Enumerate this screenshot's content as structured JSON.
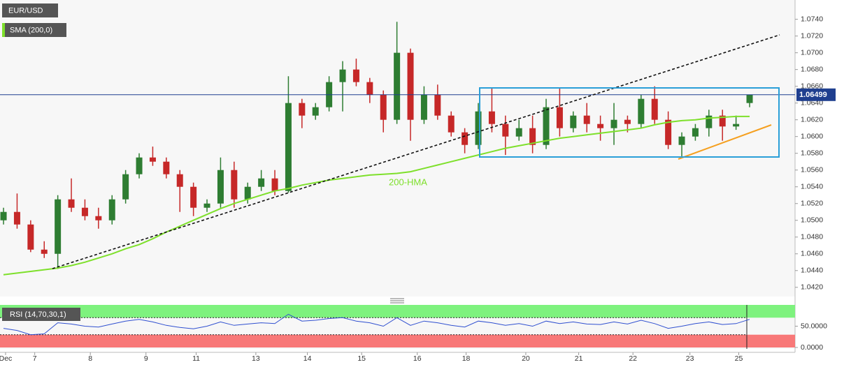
{
  "chart_data": [
    {
      "type": "candlestick",
      "title": "EUR/USD",
      "indicator": "SMA (200,0)",
      "line_label": "200-HMA",
      "xlim": [
        -0.26,
        58.35
      ],
      "ylim": [
        1.0409,
        1.0763
      ],
      "yticks": [
        {
          "value": 1.074,
          "label": "1.0740"
        },
        {
          "value": 1.072,
          "label": "1.0720"
        },
        {
          "value": 1.07,
          "label": "1.0700"
        },
        {
          "value": 1.068,
          "label": "1.0680"
        },
        {
          "value": 1.066,
          "label": "1.0660"
        },
        {
          "value": 1.064,
          "label": "1.0640"
        },
        {
          "value": 1.062,
          "label": "1.0620"
        },
        {
          "value": 1.06,
          "label": "1.0600"
        },
        {
          "value": 1.058,
          "label": "1.0580"
        },
        {
          "value": 1.056,
          "label": "1.0560"
        },
        {
          "value": 1.054,
          "label": "1.0540"
        },
        {
          "value": 1.052,
          "label": "1.0520"
        },
        {
          "value": 1.05,
          "label": "1.0500"
        },
        {
          "value": 1.048,
          "label": "1.0480"
        },
        {
          "value": 1.046,
          "label": "1.0460"
        },
        {
          "value": 1.044,
          "label": "1.0440"
        },
        {
          "value": 1.042,
          "label": "1.0420"
        }
      ],
      "last_price": 1.06499,
      "up_color": "#2e7d32",
      "down_color": "#c62828",
      "line_color": "#7ee02b",
      "price_line_color": "#1f3f8f",
      "open": [
        1.05,
        1.051,
        1.0495,
        1.0465,
        1.046,
        1.0525,
        1.0515,
        1.0505,
        1.05,
        1.0525,
        1.0555,
        1.0575,
        1.057,
        1.0555,
        1.054,
        1.0515,
        1.052,
        1.056,
        1.0525,
        1.054,
        1.055,
        1.0535,
        1.064,
        1.0625,
        1.0635,
        1.0665,
        1.068,
        1.0665,
        1.065,
        1.062,
        1.07,
        1.062,
        1.065,
        1.0625,
        1.0605,
        1.059,
        1.063,
        1.0615,
        1.06,
        1.061,
        1.059,
        1.0635,
        1.061,
        1.0625,
        1.0615,
        1.061,
        1.062,
        1.0615,
        1.0645,
        1.062,
        1.059,
        1.06,
        1.061,
        1.0625,
        1.0612,
        1.064
      ],
      "high": [
        1.0515,
        1.0532,
        1.05,
        1.0475,
        1.053,
        1.055,
        1.0525,
        1.0515,
        1.053,
        1.056,
        1.058,
        1.0588,
        1.0575,
        1.056,
        1.0545,
        1.0525,
        1.0575,
        1.057,
        1.0545,
        1.056,
        1.056,
        1.0672,
        1.0645,
        1.064,
        1.0672,
        1.069,
        1.0693,
        1.067,
        1.0655,
        1.0737,
        1.0705,
        1.066,
        1.0662,
        1.063,
        1.061,
        1.064,
        1.0658,
        1.0625,
        1.062,
        1.0625,
        1.0645,
        1.0658,
        1.063,
        1.064,
        1.0625,
        1.064,
        1.0625,
        1.065,
        1.066,
        1.063,
        1.0605,
        1.0615,
        1.0632,
        1.0632,
        1.0625,
        1.065
      ],
      "low": [
        1.0495,
        1.049,
        1.0462,
        1.0455,
        1.0442,
        1.051,
        1.05,
        1.049,
        1.0495,
        1.052,
        1.055,
        1.0565,
        1.055,
        1.051,
        1.0505,
        1.051,
        1.0515,
        1.0515,
        1.052,
        1.0535,
        1.053,
        1.0533,
        1.061,
        1.062,
        1.063,
        1.063,
        1.066,
        1.064,
        1.0605,
        1.0615,
        1.0595,
        1.0615,
        1.062,
        1.06,
        1.058,
        1.0585,
        1.0605,
        1.0578,
        1.0595,
        1.058,
        1.0585,
        1.06,
        1.0605,
        1.0605,
        1.0595,
        1.059,
        1.0605,
        1.061,
        1.0615,
        1.0585,
        1.0575,
        1.0595,
        1.06,
        1.0595,
        1.0608,
        1.0635
      ],
      "close": [
        1.051,
        1.0495,
        1.0465,
        1.046,
        1.0525,
        1.0515,
        1.0505,
        1.05,
        1.0525,
        1.0555,
        1.0575,
        1.057,
        1.0555,
        1.054,
        1.0515,
        1.052,
        1.056,
        1.0525,
        1.054,
        1.055,
        1.0535,
        1.064,
        1.0625,
        1.0635,
        1.0665,
        1.068,
        1.0665,
        1.065,
        1.062,
        1.07,
        1.062,
        1.065,
        1.0625,
        1.0605,
        1.059,
        1.063,
        1.0615,
        1.06,
        1.061,
        1.059,
        1.0635,
        1.061,
        1.0625,
        1.0615,
        1.061,
        1.062,
        1.0615,
        1.0645,
        1.062,
        1.059,
        1.06,
        1.061,
        1.0625,
        1.0612,
        1.0615,
        1.06499
      ],
      "line": [
        1.0435,
        1.0437,
        1.0439,
        1.0441,
        1.0443,
        1.0446,
        1.045,
        1.0455,
        1.046,
        1.0466,
        1.0471,
        1.0478,
        1.0486,
        1.0493,
        1.05,
        1.0507,
        1.0514,
        1.052,
        1.0525,
        1.053,
        1.0535,
        1.0538,
        1.0542,
        1.0545,
        1.0548,
        1.055,
        1.0552,
        1.0554,
        1.0555,
        1.0556,
        1.0558,
        1.0562,
        1.0566,
        1.057,
        1.0574,
        1.0578,
        1.0582,
        1.0586,
        1.0589,
        1.0592,
        1.0595,
        1.0598,
        1.06,
        1.0602,
        1.0604,
        1.0606,
        1.0608,
        1.061,
        1.0614,
        1.0617,
        1.0619,
        1.062,
        1.0622,
        1.0623,
        1.0624,
        1.0624
      ]
    },
    {
      "type": "line",
      "title": "RSI (14,70,30,1)",
      "color": "#2f4fd0",
      "xlim": [
        -0.26,
        58.35
      ],
      "ylim": [
        0,
        100
      ],
      "levels": [
        70,
        30
      ],
      "yticks": [
        {
          "value": 50,
          "label": "50.0000"
        },
        {
          "value": 0,
          "label": "0.0000"
        }
      ],
      "xticks": [
        {
          "value": 0.15,
          "label": "Dec"
        },
        {
          "value": 2.3,
          "label": "7"
        },
        {
          "value": 6.4,
          "label": "8"
        },
        {
          "value": 10.5,
          "label": "9"
        },
        {
          "value": 14.2,
          "label": "11"
        },
        {
          "value": 18.6,
          "label": "13"
        },
        {
          "value": 22.4,
          "label": "14"
        },
        {
          "value": 26.4,
          "label": "15"
        },
        {
          "value": 30.5,
          "label": "16"
        },
        {
          "value": 34.1,
          "label": "18"
        },
        {
          "value": 38.5,
          "label": "20"
        },
        {
          "value": 42.4,
          "label": "21"
        },
        {
          "value": 46.4,
          "label": "22"
        },
        {
          "value": 50.6,
          "label": "23"
        },
        {
          "value": 54.2,
          "label": "25"
        }
      ],
      "values": [
        45,
        40,
        30,
        32,
        58,
        55,
        50,
        48,
        55,
        62,
        66,
        60,
        52,
        47,
        44,
        50,
        60,
        52,
        55,
        58,
        56,
        78,
        62,
        64,
        68,
        70,
        62,
        58,
        50,
        70,
        52,
        62,
        58,
        52,
        48,
        62,
        58,
        52,
        56,
        50,
        62,
        56,
        60,
        55,
        54,
        60,
        55,
        64,
        56,
        45,
        50,
        56,
        60,
        54,
        56,
        66
      ]
    }
  ]
}
